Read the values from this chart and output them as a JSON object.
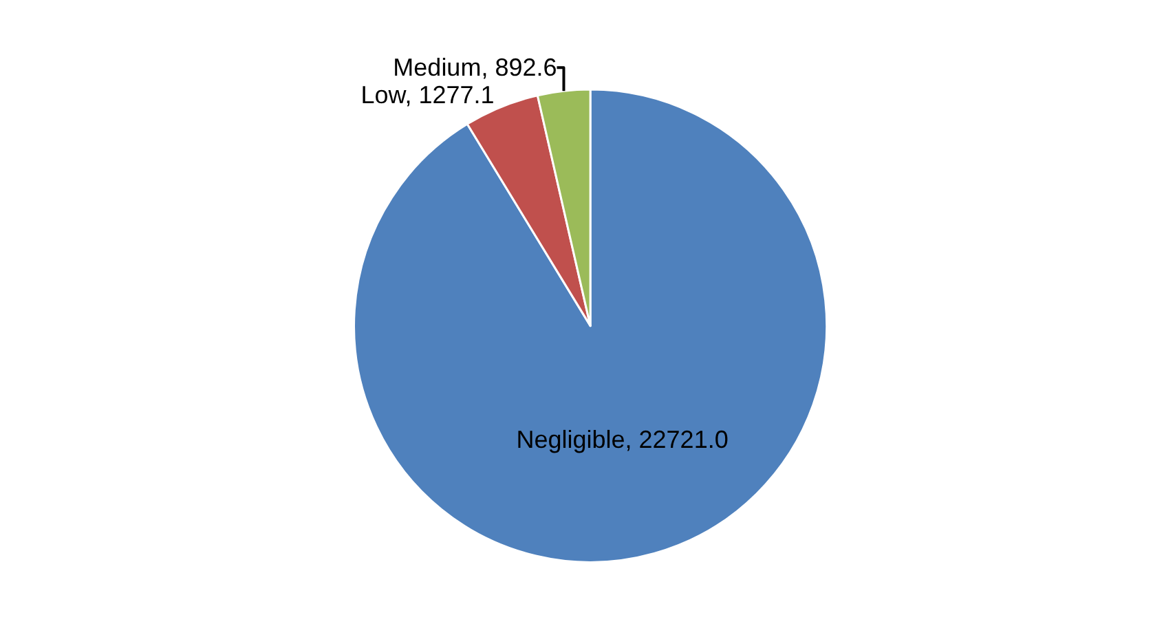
{
  "chart_data": {
    "type": "pie",
    "categories": [
      "Negligible",
      "Low",
      "Medium"
    ],
    "values": [
      22721.0,
      1277.1,
      892.6
    ],
    "value_labels": [
      "22721.0",
      "1277.1",
      "892.6"
    ],
    "colors": [
      "#4f81bd",
      "#c0504d",
      "#9bbb59"
    ],
    "legend": false
  }
}
